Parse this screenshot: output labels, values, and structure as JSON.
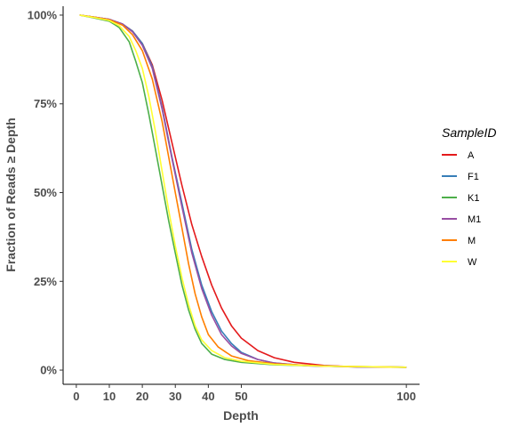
{
  "chart_data": {
    "type": "line",
    "title": "",
    "xlabel": "Depth",
    "ylabel": "Fraction of Reads ≥ Depth",
    "xlim": [
      -4,
      104
    ],
    "ylim": [
      -0.04,
      1.025
    ],
    "x_ticks": [
      0,
      10,
      20,
      30,
      40,
      50,
      100
    ],
    "y_ticks": [
      0,
      0.25,
      0.5,
      0.75,
      1.0
    ],
    "y_tick_labels": [
      "0%",
      "25%",
      "50%",
      "75%",
      "100%"
    ],
    "grid": false,
    "legend": {
      "title": "SampleID",
      "position": "right"
    },
    "series": [
      {
        "name": "A",
        "color": "#e41a1c",
        "points": [
          [
            1,
            1.0
          ],
          [
            5,
            0.995
          ],
          [
            10,
            0.988
          ],
          [
            14,
            0.975
          ],
          [
            17,
            0.955
          ],
          [
            20,
            0.92
          ],
          [
            23,
            0.86
          ],
          [
            26,
            0.76
          ],
          [
            29,
            0.64
          ],
          [
            32,
            0.52
          ],
          [
            35,
            0.41
          ],
          [
            38,
            0.32
          ],
          [
            41,
            0.24
          ],
          [
            44,
            0.175
          ],
          [
            47,
            0.125
          ],
          [
            50,
            0.09
          ],
          [
            55,
            0.055
          ],
          [
            60,
            0.035
          ],
          [
            66,
            0.022
          ],
          [
            75,
            0.013
          ],
          [
            85,
            0.009
          ],
          [
            100,
            0.008
          ]
        ]
      },
      {
        "name": "F1",
        "color": "#377eb8",
        "points": [
          [
            1,
            1.0
          ],
          [
            5,
            0.995
          ],
          [
            10,
            0.988
          ],
          [
            14,
            0.975
          ],
          [
            17,
            0.955
          ],
          [
            20,
            0.92
          ],
          [
            23,
            0.855
          ],
          [
            26,
            0.74
          ],
          [
            29,
            0.6
          ],
          [
            32,
            0.47
          ],
          [
            35,
            0.34
          ],
          [
            38,
            0.24
          ],
          [
            41,
            0.165
          ],
          [
            44,
            0.11
          ],
          [
            47,
            0.075
          ],
          [
            50,
            0.05
          ],
          [
            55,
            0.03
          ],
          [
            60,
            0.02
          ],
          [
            70,
            0.012
          ],
          [
            85,
            0.009
          ],
          [
            100,
            0.008
          ]
        ]
      },
      {
        "name": "K1",
        "color": "#4daf4a",
        "points": [
          [
            1,
            1.0
          ],
          [
            5,
            0.993
          ],
          [
            10,
            0.983
          ],
          [
            13,
            0.965
          ],
          [
            16,
            0.925
          ],
          [
            18,
            0.87
          ],
          [
            20,
            0.81
          ],
          [
            22,
            0.72
          ],
          [
            24,
            0.62
          ],
          [
            26,
            0.52
          ],
          [
            28,
            0.42
          ],
          [
            30,
            0.33
          ],
          [
            32,
            0.24
          ],
          [
            34,
            0.17
          ],
          [
            36,
            0.115
          ],
          [
            38,
            0.075
          ],
          [
            41,
            0.045
          ],
          [
            45,
            0.03
          ],
          [
            50,
            0.022
          ],
          [
            60,
            0.015
          ],
          [
            75,
            0.011
          ],
          [
            100,
            0.008
          ]
        ]
      },
      {
        "name": "M1",
        "color": "#984ea3",
        "points": [
          [
            1,
            1.0
          ],
          [
            5,
            0.995
          ],
          [
            10,
            0.988
          ],
          [
            14,
            0.975
          ],
          [
            17,
            0.953
          ],
          [
            20,
            0.915
          ],
          [
            23,
            0.85
          ],
          [
            26,
            0.735
          ],
          [
            29,
            0.595
          ],
          [
            32,
            0.46
          ],
          [
            35,
            0.33
          ],
          [
            38,
            0.23
          ],
          [
            41,
            0.155
          ],
          [
            44,
            0.1
          ],
          [
            47,
            0.068
          ],
          [
            50,
            0.047
          ],
          [
            55,
            0.03
          ],
          [
            60,
            0.02
          ],
          [
            70,
            0.012
          ],
          [
            85,
            0.009
          ],
          [
            100,
            0.008
          ]
        ]
      },
      {
        "name": "M",
        "color": "#ff7f00",
        "points": [
          [
            1,
            1.0
          ],
          [
            5,
            0.995
          ],
          [
            10,
            0.987
          ],
          [
            14,
            0.972
          ],
          [
            17,
            0.945
          ],
          [
            20,
            0.9
          ],
          [
            23,
            0.82
          ],
          [
            26,
            0.7
          ],
          [
            28,
            0.6
          ],
          [
            30,
            0.5
          ],
          [
            32,
            0.4
          ],
          [
            34,
            0.3
          ],
          [
            36,
            0.215
          ],
          [
            38,
            0.15
          ],
          [
            40,
            0.1
          ],
          [
            43,
            0.065
          ],
          [
            47,
            0.04
          ],
          [
            52,
            0.027
          ],
          [
            60,
            0.018
          ],
          [
            75,
            0.011
          ],
          [
            100,
            0.008
          ]
        ]
      },
      {
        "name": "W",
        "color": "#ffff33",
        "points": [
          [
            1,
            1.0
          ],
          [
            5,
            0.994
          ],
          [
            10,
            0.985
          ],
          [
            13,
            0.97
          ],
          [
            16,
            0.94
          ],
          [
            18,
            0.9
          ],
          [
            20,
            0.85
          ],
          [
            22,
            0.77
          ],
          [
            24,
            0.67
          ],
          [
            26,
            0.56
          ],
          [
            28,
            0.45
          ],
          [
            30,
            0.35
          ],
          [
            32,
            0.26
          ],
          [
            34,
            0.185
          ],
          [
            36,
            0.125
          ],
          [
            38,
            0.085
          ],
          [
            41,
            0.055
          ],
          [
            45,
            0.035
          ],
          [
            50,
            0.025
          ],
          [
            60,
            0.016
          ],
          [
            75,
            0.011
          ],
          [
            100,
            0.008
          ]
        ]
      }
    ]
  }
}
